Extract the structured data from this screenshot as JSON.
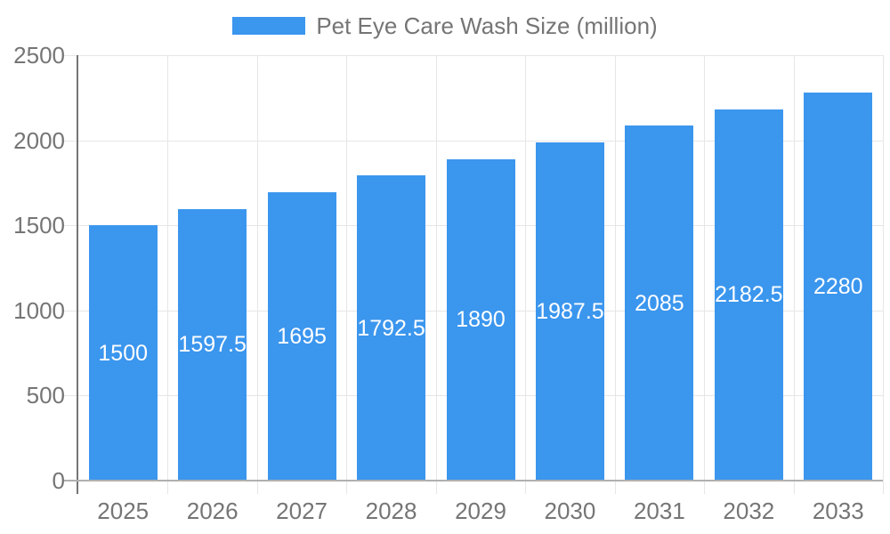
{
  "chart_data": {
    "type": "bar",
    "title": "",
    "legend": {
      "label": "Pet Eye Care Wash Size (million)",
      "position": "top"
    },
    "categories": [
      "2025",
      "2026",
      "2027",
      "2028",
      "2029",
      "2030",
      "2031",
      "2032",
      "2033"
    ],
    "series": [
      {
        "name": "Pet Eye Care Wash Size (million)",
        "values": [
          1500,
          1597.5,
          1695,
          1792.5,
          1890,
          1987.5,
          2085,
          2182.5,
          2280
        ]
      }
    ],
    "values": [
      1500,
      1597.5,
      1695,
      1792.5,
      1890,
      1987.5,
      2085,
      2182.5,
      2280
    ],
    "xlabel": "",
    "ylabel": "",
    "ylim": [
      0,
      2500
    ],
    "yticks": [
      "0",
      "500",
      "1000",
      "1500",
      "2000",
      "2500"
    ],
    "grid": true,
    "data_labels": "inside-center",
    "colors": {
      "bar": "#3b96ee",
      "axis_text": "#757575",
      "gridline": "#e6e6e6",
      "baseline": "#b0b0b0",
      "axis_line": "#757575",
      "data_label": "#ffffff",
      "background": "#ffffff"
    }
  }
}
